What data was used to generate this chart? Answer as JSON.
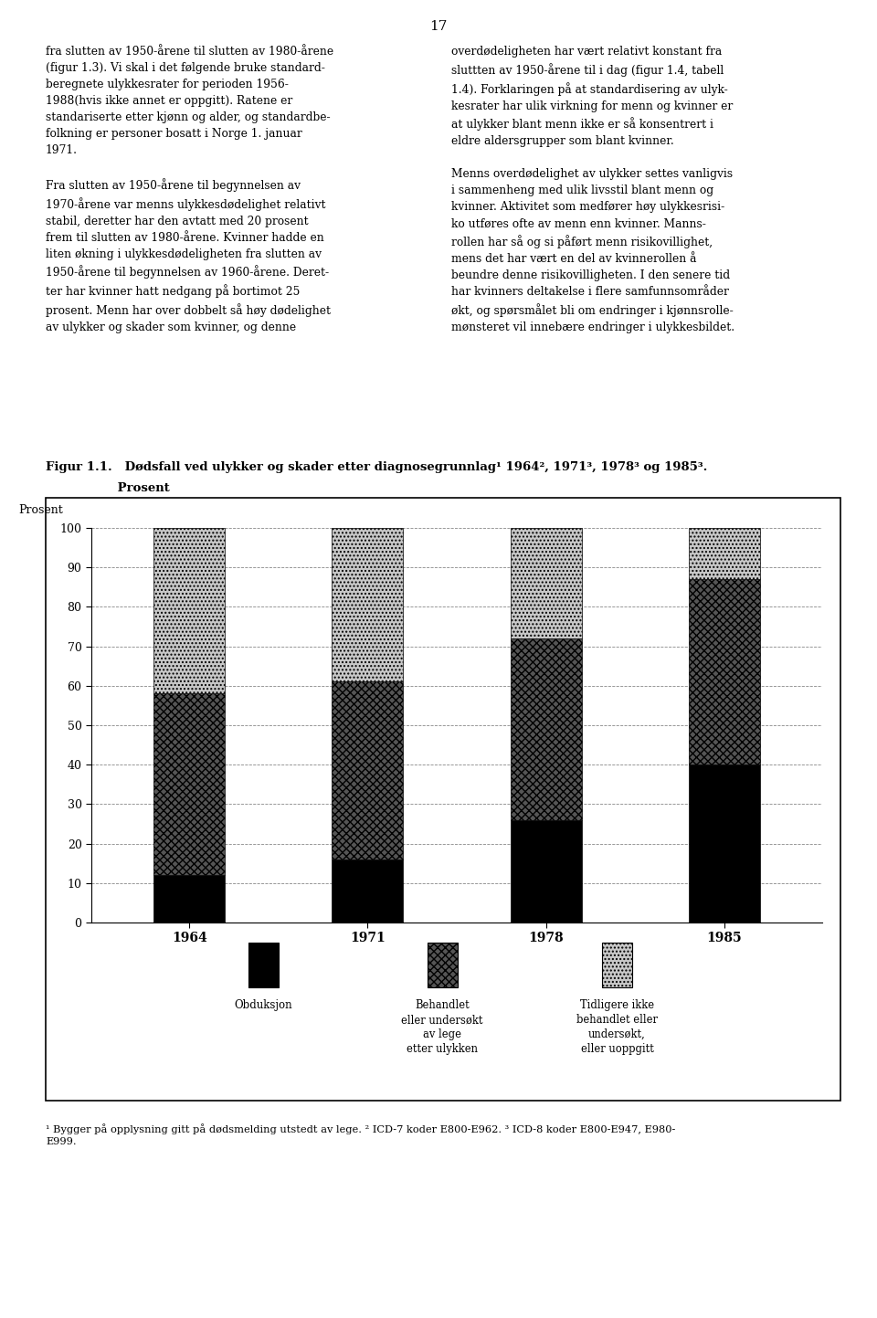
{
  "page_number": "17",
  "title_line1": "Figur 1.1.   Dødsfall ved ulykker og skader etter diagnosegrunnlag¹ 1964², 1971³, 1978³ og 1985³.",
  "title_line2": "                 Prosent",
  "ylabel": "Prosent",
  "ylim": [
    0,
    100
  ],
  "yticks": [
    0,
    10,
    20,
    30,
    40,
    50,
    60,
    70,
    80,
    90,
    100
  ],
  "years": [
    "1964",
    "1971",
    "1978",
    "1985"
  ],
  "obduksjon": [
    12,
    16,
    26,
    40
  ],
  "behandlet": [
    46,
    45,
    46,
    47
  ],
  "tidligere": [
    42,
    39,
    28,
    13
  ],
  "footnote": "¹ Bygger på opplysning gitt på dødsmelding utstedt av lege. ² ICD-7 koder E800-E962. ³ ICD-8 koder E800-E947, E980-\nE999.",
  "body_left": "fra slutten av 1950-årene til slutten av 1980-årene\n(figur 1.3). Vi skal i det følgende bruke standard-\nberegnete ulykkesrater for perioden 1956-\n1988(hvis ikke annet er oppgitt). Ratene er\nstandariserte etter kjønn og alder, og standardbe-\nfolkning er personer bosatt i Norge 1. januar\n1971.\n\nFra slutten av 1950-årene til begynnelsen av\n1970-årene var menns ulykkesdødelighet relativt\nstabil, deretter har den avtatt med 20 prosent\nfrem til slutten av 1980-årene. Kvinner hadde en\nliten økning i ulykkesdødeligheten fra slutten av\n1950-årene til begynnelsen av 1960-årene. Deret-\nter har kvinner hatt nedgang på bortimot 25\nprosent. Menn har over dobbelt så høy dødelighet\nav ulykker og skader som kvinner, og denne",
  "body_right": "overdødeligheten har vært relativt konstant fra\nsluttten av 1950-årene til i dag (figur 1.4, tabell\n1.4). Forklaringen på at standardisering av ulyk-\nkesrater har ulik virkning for menn og kvinner er\nat ulykker blant menn ikke er så konsentrert i\neldre aldersgrupper som blant kvinner.\n\nMenns overdødelighet av ulykker settes vanligvis\ni sammenheng med ulik livsstil blant menn og\nkvinner. Aktivitet som medfører høy ulykkesrisi-\nko utføres ofte av menn enn kvinner. Manns-\nrollen har så og si påført menn risikovillighet,\nmens det har vært en del av kvinnerollen å\nbeundre denne risikovilligheten. I den senere tid\nhar kvinners deltakelse i flere samfunnsområder\nøkt, og spørsmålet bli om endringer i kjønnsrolle-\nmønsteret vil innebære endringer i ulykkesbildet."
}
